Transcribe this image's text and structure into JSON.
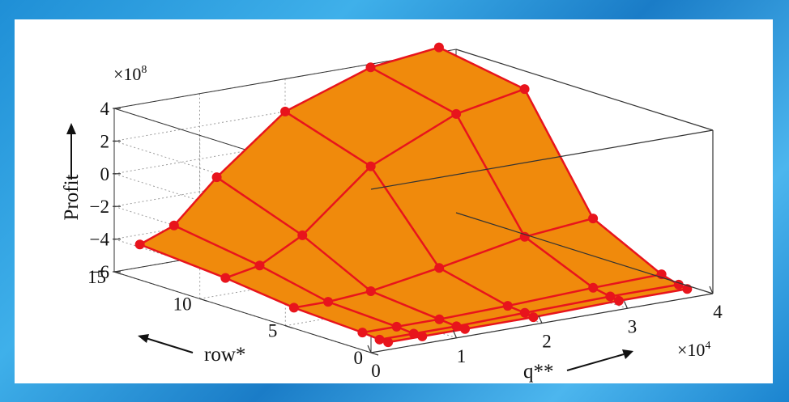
{
  "colors": {
    "surface": "#f08a0c",
    "mesh": "#e8141c",
    "marker": "#e8141c",
    "grid": "#9a9a9a",
    "box": "#333333",
    "background": "#2596dd"
  },
  "chart_data": {
    "type": "surface",
    "title": "",
    "zlabel": "Profit",
    "xlabel": "q**",
    "ylabel": "row*",
    "x_multiplier": "×10",
    "x_multiplier_exp": "4",
    "z_multiplier": "×10",
    "z_multiplier_exp": "8",
    "xlim": [
      0,
      4
    ],
    "ylim": [
      0,
      15
    ],
    "zlim": [
      -6,
      4
    ],
    "x_ticks": [
      "0",
      "1",
      "2",
      "3",
      "4"
    ],
    "y_ticks": [
      "0",
      "5",
      "10",
      "15"
    ],
    "z_ticks": [
      "4",
      "2",
      "0",
      "−2",
      "−4",
      "−6"
    ],
    "grid": true,
    "q_values": [
      0.3,
      0.7,
      1.2,
      2.0,
      3.0,
      3.8
    ],
    "row_values": [
      0.5,
      1.0,
      2.0,
      6.0,
      10.0,
      15.0
    ],
    "profit": [
      [
        -5.8,
        -5.8,
        -5.8,
        -5.8,
        -5.7,
        -5.7
      ],
      [
        -5.8,
        -5.8,
        -5.8,
        -5.7,
        -5.6,
        -5.6
      ],
      [
        -5.7,
        -5.7,
        -5.7,
        -5.6,
        -5.4,
        -5.3
      ],
      [
        -5.5,
        -5.5,
        -5.3,
        -4.6,
        -3.6,
        -3.2
      ],
      [
        -5.0,
        -4.6,
        -3.2,
        0.3,
        2.6,
        3.4
      ],
      [
        -4.6,
        -3.8,
        -1.3,
        2.0,
        3.8,
        4.3
      ]
    ]
  }
}
